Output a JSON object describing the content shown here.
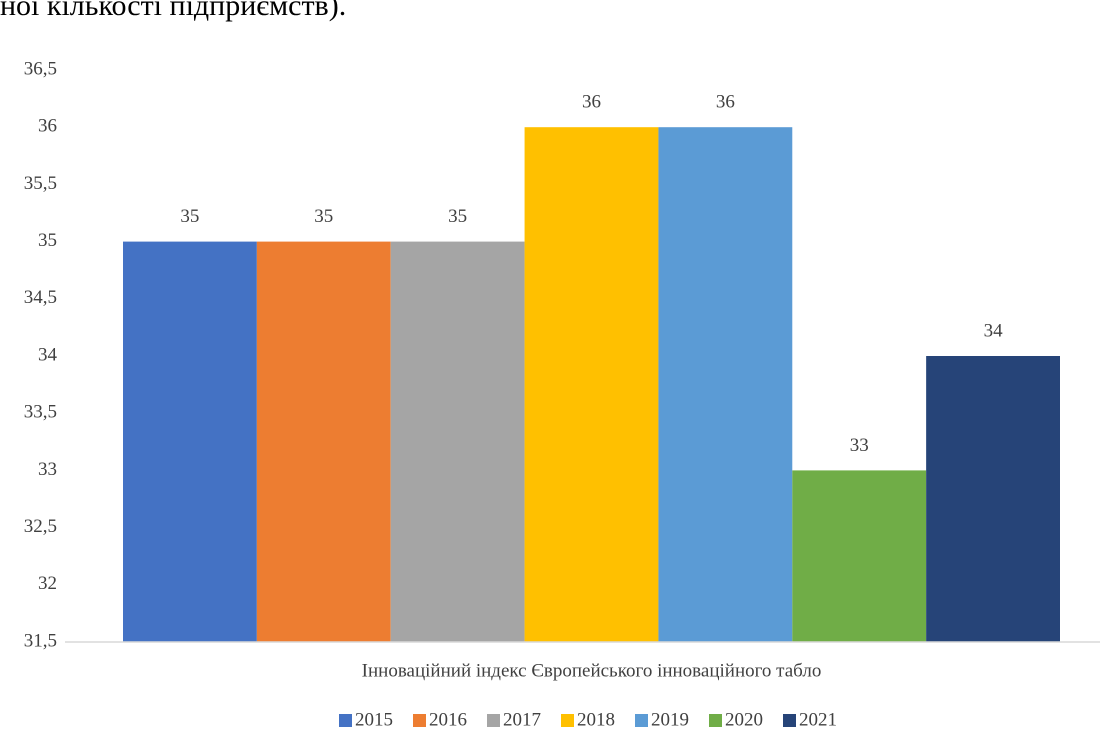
{
  "header_text": "ної кількості підприємств).",
  "chart_data": {
    "type": "bar",
    "categories": [
      "Інноваційний індекс Європейського інноваційного табло"
    ],
    "series": [
      {
        "name": "2015",
        "color": "#4472c4",
        "values": [
          35
        ]
      },
      {
        "name": "2016",
        "color": "#ed7d31",
        "values": [
          35
        ]
      },
      {
        "name": "2017",
        "color": "#a5a5a5",
        "values": [
          35
        ]
      },
      {
        "name": "2018",
        "color": "#ffc000",
        "values": [
          36
        ]
      },
      {
        "name": "2019",
        "color": "#5b9bd5",
        "values": [
          36
        ]
      },
      {
        "name": "2020",
        "color": "#70ad47",
        "values": [
          33
        ]
      },
      {
        "name": "2021",
        "color": "#264478",
        "values": [
          34
        ]
      }
    ],
    "ylim": [
      31.5,
      36.5
    ],
    "yticks": [
      {
        "value": 31.5,
        "label": "31,5"
      },
      32,
      {
        "value": 32.5,
        "label": "32,5"
      },
      33,
      {
        "value": 33.5,
        "label": "33,5"
      },
      34,
      {
        "value": 34.5,
        "label": "34,5"
      },
      35,
      {
        "value": 35.5,
        "label": "35,5"
      },
      36,
      {
        "value": 36.5,
        "label": "36,5"
      }
    ],
    "grid": false,
    "legend": "bottom"
  }
}
